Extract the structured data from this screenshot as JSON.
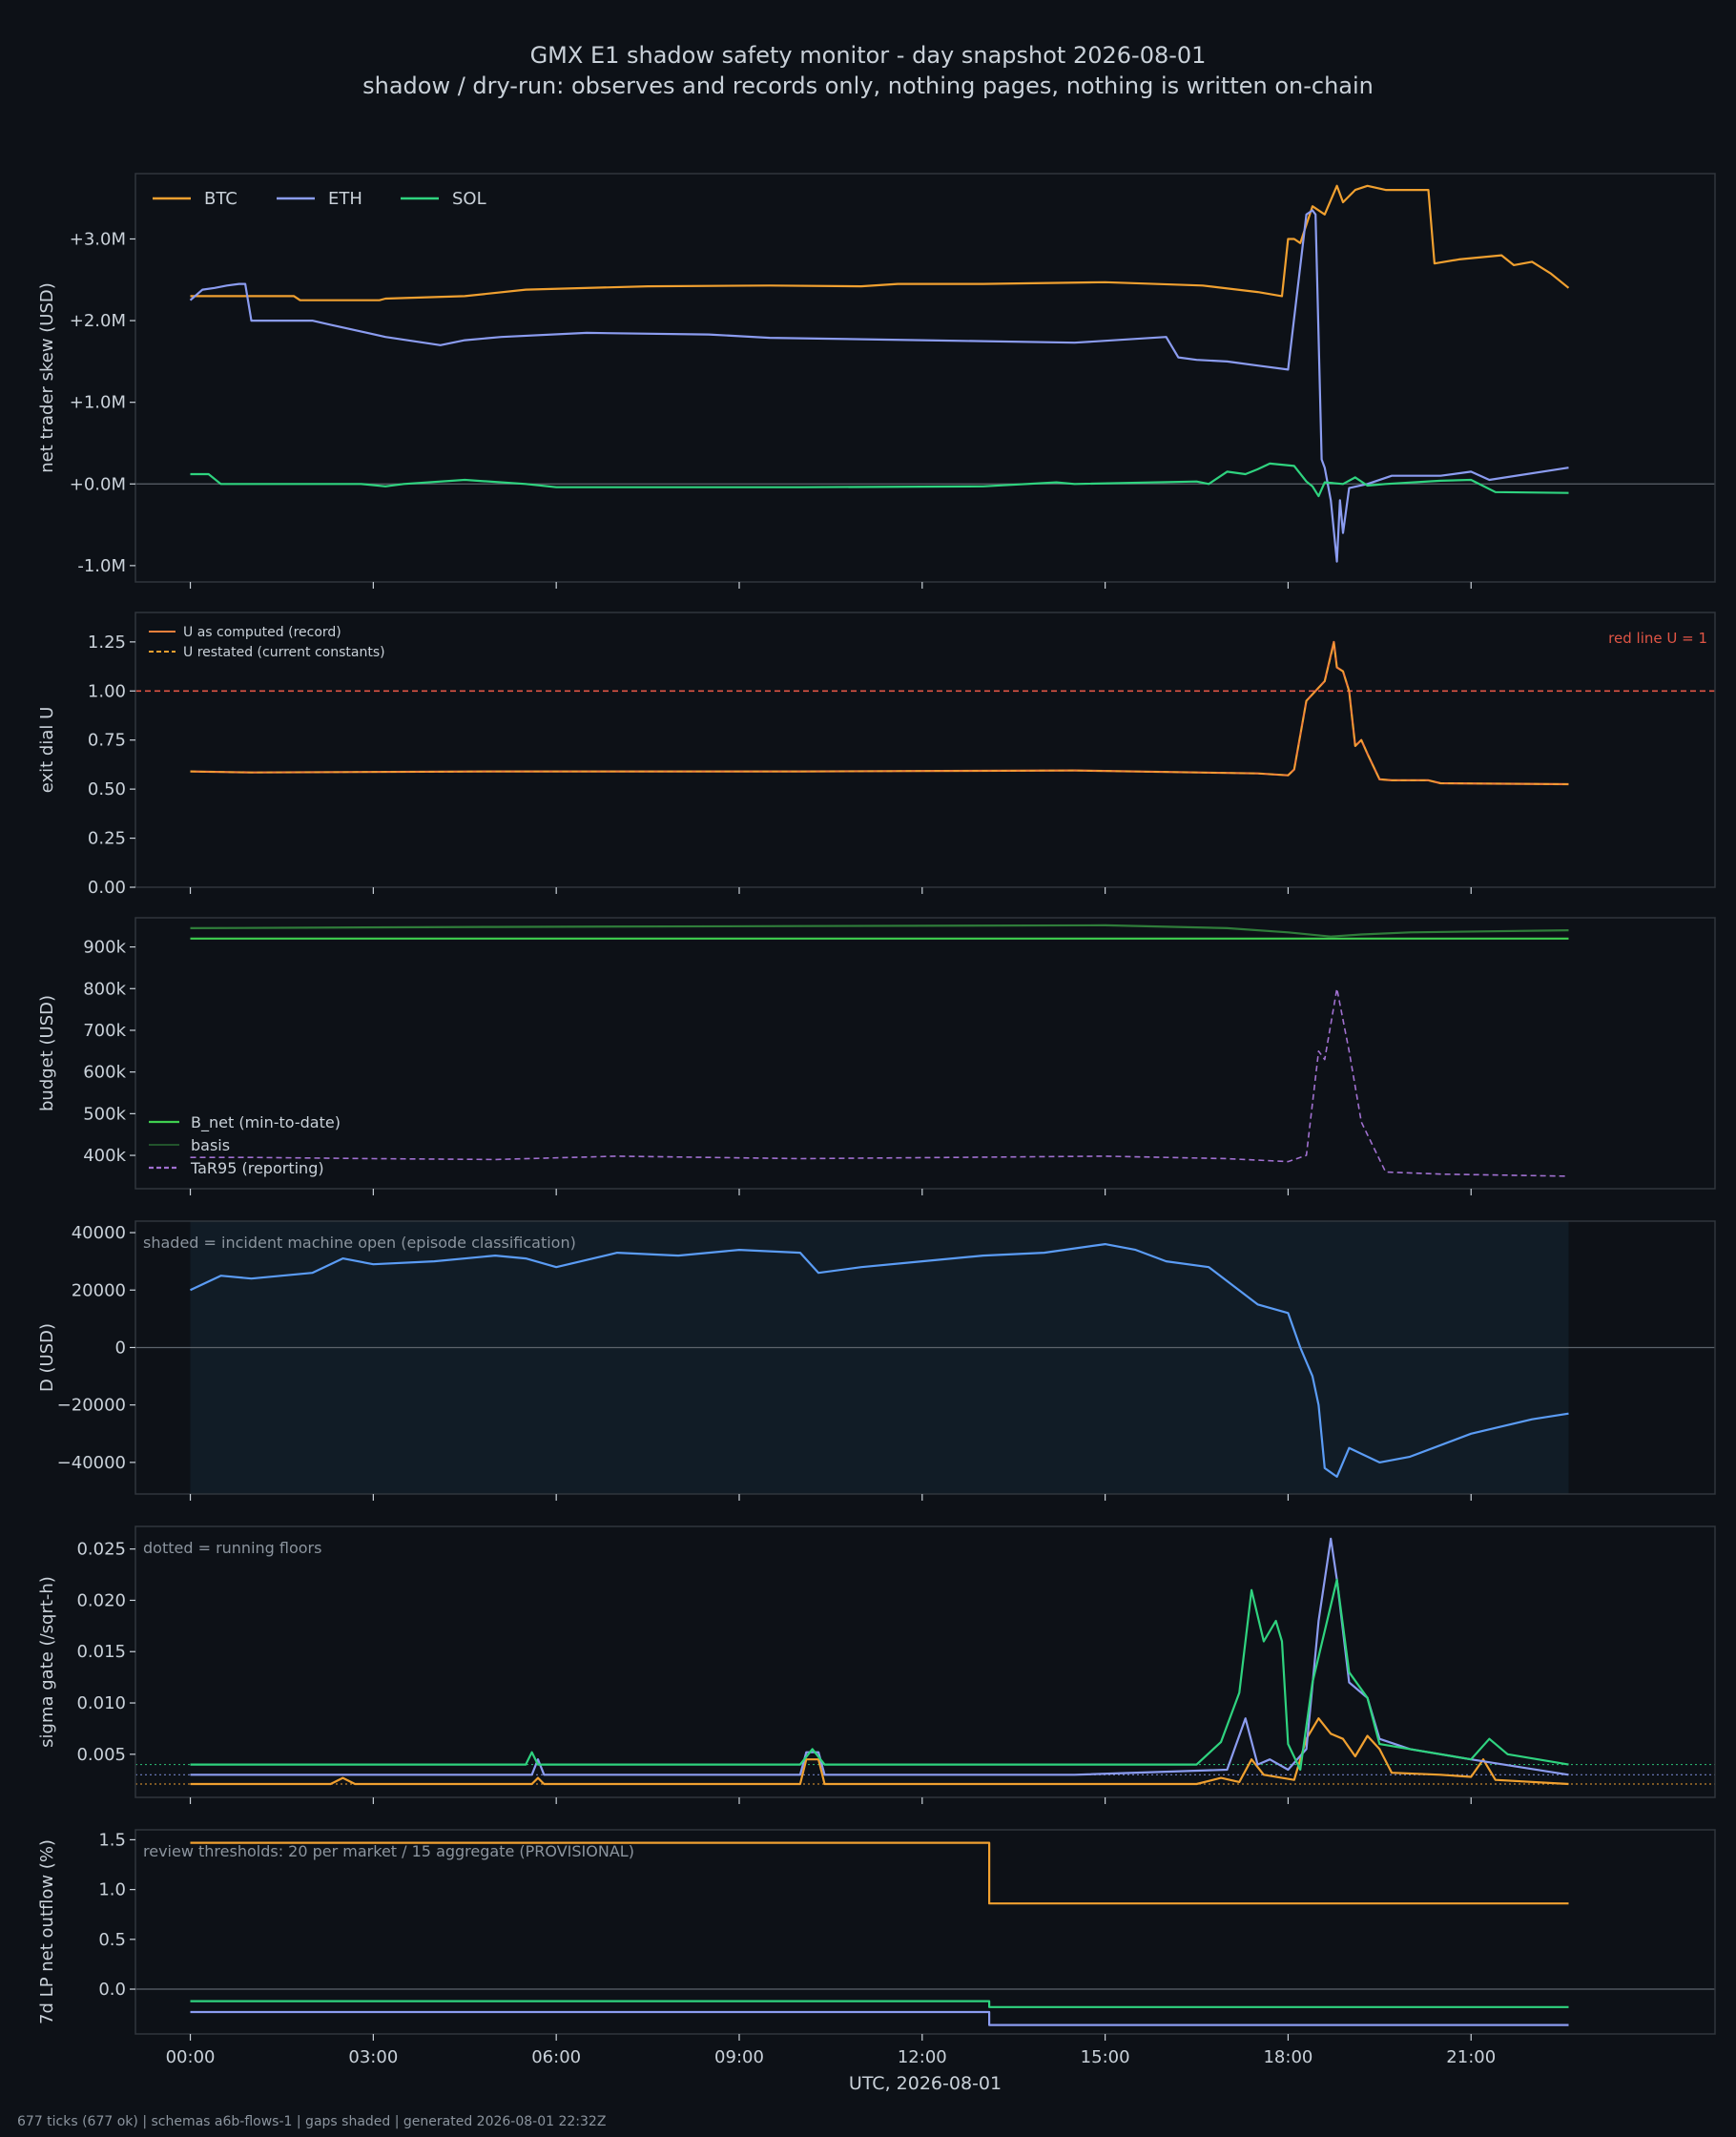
{
  "title": "GMX E1 shadow safety monitor - day snapshot 2026-08-01",
  "subtitle": "shadow / dry-run: observes and records only, nothing pages, nothing is written on-chain",
  "footer": "677 ticks (677 ok) | schemas a6b-flows-1 | gaps shaded | generated 2026-08-01 22:32Z",
  "colors": {
    "background": "#0d1117",
    "axes_border": "#30363d",
    "text": "#c9d1d9",
    "muted_text": "#8b949e",
    "btc": "#f0a030",
    "eth": "#8b9cf0",
    "sol": "#2fd37f",
    "u_record": "#f0803c",
    "red_line": "#e05545",
    "b_net": "#3fcf4f",
    "basis": "#2f7d3a",
    "tar95": "#a070d0",
    "d_line": "#5b9cf5",
    "incident_shade": "#111c26"
  },
  "chart_data": [
    {
      "type": "line",
      "ylabel": "net trader skew (USD)",
      "ylim": [
        -1200000,
        3800000
      ],
      "yticks": [
        -1000000,
        0,
        1000000,
        2000000,
        3000000
      ],
      "yticklabels": [
        "-1.0M",
        "+0.0M",
        "+1.0M",
        "+2.0M",
        "+3.0M"
      ],
      "xlim": [
        -0.9,
        25.0
      ],
      "legend_position": "top-left",
      "zero_line": true,
      "series": [
        {
          "name": "BTC",
          "color": "btc",
          "x": [
            0,
            1.7,
            1.8,
            3.1,
            3.2,
            4.5,
            5.5,
            7.5,
            9.5,
            11,
            11.6,
            13,
            15,
            16.6,
            17.5,
            17.9,
            18.0,
            18.1,
            18.2,
            18.4,
            18.6,
            18.8,
            18.9,
            19.1,
            19.3,
            19.6,
            20.3,
            20.4,
            20.8,
            21.5,
            21.7,
            22.0,
            22.3,
            22.6
          ],
          "values": [
            2300000,
            2300000,
            2250000,
            2250000,
            2270000,
            2300000,
            2380000,
            2420000,
            2430000,
            2420000,
            2450000,
            2450000,
            2470000,
            2430000,
            2350000,
            2300000,
            3000000,
            3000000,
            2950000,
            3400000,
            3300000,
            3650000,
            3450000,
            3600000,
            3650000,
            3600000,
            3600000,
            2700000,
            2750000,
            2800000,
            2680000,
            2720000,
            2580000,
            2400000
          ]
        },
        {
          "name": "ETH",
          "color": "eth",
          "x": [
            0,
            0.2,
            0.4,
            0.6,
            0.8,
            0.9,
            1.0,
            1.1,
            2.0,
            2.3,
            3.2,
            4.1,
            4.5,
            5.1,
            6.5,
            8.5,
            9.5,
            12,
            14.5,
            16.0,
            16.2,
            16.5,
            17.0,
            17.5,
            18.0,
            18.3,
            18.4,
            18.45,
            18.55,
            18.6,
            18.7,
            18.8,
            18.85,
            18.9,
            19.0,
            19.3,
            19.7,
            20.5,
            21.0,
            21.3,
            22.6
          ],
          "values": [
            2250000,
            2380000,
            2400000,
            2430000,
            2450000,
            2450000,
            2000000,
            2000000,
            2000000,
            1950000,
            1800000,
            1700000,
            1760000,
            1800000,
            1850000,
            1830000,
            1790000,
            1760000,
            1730000,
            1800000,
            1550000,
            1520000,
            1500000,
            1450000,
            1400000,
            3300000,
            3350000,
            3300000,
            300000,
            200000,
            -200000,
            -950000,
            -200000,
            -600000,
            -50000,
            0,
            100000,
            100000,
            150000,
            50000,
            200000
          ]
        },
        {
          "name": "SOL",
          "color": "sol",
          "x": [
            0,
            0.3,
            0.5,
            2.8,
            3.2,
            3.5,
            4.5,
            5.5,
            6,
            10,
            13,
            14.2,
            14.5,
            16.5,
            16.7,
            17.0,
            17.3,
            17.5,
            17.7,
            18.1,
            18.3,
            18.4,
            18.5,
            18.6,
            18.9,
            19.1,
            19.3,
            19.6,
            20.5,
            21.0,
            21.4,
            22.6
          ],
          "values": [
            120000,
            120000,
            0,
            0,
            -30000,
            0,
            50000,
            0,
            -40000,
            -40000,
            -30000,
            20000,
            0,
            30000,
            0,
            150000,
            120000,
            180000,
            250000,
            220000,
            30000,
            -30000,
            -150000,
            20000,
            0,
            80000,
            -20000,
            0,
            40000,
            50000,
            -100000,
            -110000
          ]
        }
      ]
    },
    {
      "type": "line",
      "ylabel": "exit dial U",
      "ylim": [
        0,
        1.4
      ],
      "yticks": [
        0,
        0.25,
        0.5,
        0.75,
        1.0,
        1.25
      ],
      "yticklabels": [
        "0.00",
        "0.25",
        "0.50",
        "0.75",
        "1.00",
        "1.25"
      ],
      "xlim": [
        -0.9,
        25.0
      ],
      "legend_position": "top-left",
      "hline": {
        "y": 1.0,
        "color": "red_line",
        "dash": true,
        "label": "red line U = 1"
      },
      "series": [
        {
          "name": "U as computed (record)",
          "color": "u_record",
          "x": [
            0,
            1.0,
            5.0,
            10.0,
            14.5,
            17.5,
            18.0,
            18.1,
            18.3,
            18.45,
            18.6,
            18.75,
            18.8,
            18.9,
            19.0,
            19.1,
            19.2,
            19.3,
            19.5,
            19.7,
            20.3,
            20.5,
            22.6
          ],
          "values": [
            0.59,
            0.585,
            0.59,
            0.59,
            0.595,
            0.58,
            0.57,
            0.6,
            0.95,
            1.0,
            1.05,
            1.25,
            1.12,
            1.1,
            1.0,
            0.72,
            0.75,
            0.68,
            0.55,
            0.545,
            0.545,
            0.53,
            0.525
          ]
        },
        {
          "name": "U restated (current constants)",
          "color": "btc",
          "dash": true,
          "x": [
            0,
            1.0,
            5.0,
            10.0,
            14.5,
            17.5,
            18.0,
            18.1,
            18.3,
            18.45,
            18.6,
            18.75,
            18.8,
            18.9,
            19.0,
            19.1,
            19.2,
            19.3,
            19.5,
            19.7,
            20.3,
            20.5,
            22.6
          ],
          "values": [
            0.59,
            0.585,
            0.59,
            0.59,
            0.595,
            0.58,
            0.57,
            0.6,
            0.95,
            1.0,
            1.05,
            1.24,
            1.12,
            1.1,
            1.0,
            0.72,
            0.75,
            0.68,
            0.55,
            0.545,
            0.545,
            0.53,
            0.525
          ]
        }
      ]
    },
    {
      "type": "line",
      "ylabel": "budget (USD)",
      "ylim": [
        320000,
        970000
      ],
      "yticks": [
        400000,
        500000,
        600000,
        700000,
        800000,
        900000
      ],
      "yticklabels": [
        "400k",
        "500k",
        "600k",
        "700k",
        "800k",
        "900k"
      ],
      "xlim": [
        -0.9,
        25.0
      ],
      "legend_position": "lower-left",
      "series": [
        {
          "name": "B_net (min-to-date)",
          "color": "b_net",
          "x": [
            0,
            22.6
          ],
          "values": [
            920000,
            920000
          ]
        },
        {
          "name": "basis",
          "color": "basis",
          "x": [
            0,
            5,
            10,
            15,
            17,
            18.0,
            18.7,
            19.2,
            20,
            22.6
          ],
          "values": [
            945000,
            948000,
            950000,
            952000,
            945000,
            935000,
            925000,
            930000,
            935000,
            940000
          ]
        },
        {
          "name": "TaR95 (reporting)",
          "color": "tar95",
          "dash": true,
          "x": [
            0,
            1,
            3,
            5,
            7,
            10,
            15,
            17,
            18.0,
            18.3,
            18.5,
            18.6,
            18.8,
            19.0,
            19.2,
            19.4,
            19.6,
            20.5,
            22.6
          ],
          "values": [
            395000,
            395000,
            392000,
            390000,
            398000,
            392000,
            398000,
            392000,
            385000,
            400000,
            650000,
            630000,
            800000,
            650000,
            480000,
            420000,
            360000,
            355000,
            350000
          ]
        }
      ]
    },
    {
      "type": "line",
      "ylabel": "D (USD)",
      "ylim": [
        -51000,
        44000
      ],
      "yticks": [
        -40000,
        -20000,
        0,
        20000,
        40000
      ],
      "yticklabels": [
        "−40000",
        "−20000",
        "0",
        "20000",
        "40000"
      ],
      "xlim": [
        -0.9,
        25.0
      ],
      "zero_line": true,
      "annotation": "shaded = incident machine open (episode classification)",
      "shaded_span": [
        0,
        22.6
      ],
      "series": [
        {
          "name": "",
          "color": "d_line",
          "x": [
            0,
            0.5,
            1,
            2,
            2.5,
            3,
            4,
            5,
            5.5,
            6,
            7,
            8,
            9,
            10,
            10.3,
            11,
            12,
            13,
            14,
            15,
            15.5,
            16,
            16.7,
            17.5,
            18,
            18.2,
            18.4,
            18.5,
            18.6,
            18.8,
            19.0,
            19.5,
            20,
            21,
            22,
            22.6
          ],
          "values": [
            20000,
            25000,
            24000,
            26000,
            31000,
            29000,
            30000,
            32000,
            31000,
            28000,
            33000,
            32000,
            34000,
            33000,
            26000,
            28000,
            30000,
            32000,
            33000,
            36000,
            34000,
            30000,
            28000,
            15000,
            12000,
            0,
            -10000,
            -20000,
            -42000,
            -45000,
            -35000,
            -40000,
            -38000,
            -30000,
            -25000,
            -23000
          ]
        }
      ]
    },
    {
      "type": "line",
      "ylabel": "sigma gate (/sqrt-h)",
      "ylim": [
        0.0008,
        0.0272
      ],
      "yticks": [
        0.005,
        0.01,
        0.015,
        0.02,
        0.025
      ],
      "yticklabels": [
        "0.005",
        "0.010",
        "0.015",
        "0.020",
        "0.025"
      ],
      "xlim": [
        -0.9,
        25.0
      ],
      "annotation": "dotted = running floors",
      "floors": [
        {
          "value": 0.004,
          "color": "sol"
        },
        {
          "value": 0.003,
          "color": "eth"
        },
        {
          "value": 0.0021,
          "color": "btc"
        }
      ],
      "series": [
        {
          "name": "BTC",
          "color": "btc",
          "x": [
            0,
            2.3,
            2.5,
            2.7,
            5.6,
            5.7,
            5.8,
            10.0,
            10.1,
            10.3,
            10.4,
            16.5,
            16.9,
            17.2,
            17.4,
            17.6,
            17.9,
            18.1,
            18.3,
            18.5,
            18.7,
            18.9,
            19.1,
            19.3,
            19.5,
            19.7,
            20.5,
            21.0,
            21.2,
            21.4,
            22.6
          ],
          "values": [
            0.0021,
            0.0021,
            0.0027,
            0.0021,
            0.0021,
            0.0027,
            0.0021,
            0.0021,
            0.0045,
            0.0045,
            0.0021,
            0.0021,
            0.0027,
            0.0023,
            0.0045,
            0.003,
            0.0027,
            0.0025,
            0.0065,
            0.0085,
            0.007,
            0.0065,
            0.0048,
            0.0068,
            0.0055,
            0.0032,
            0.003,
            0.0028,
            0.0045,
            0.0025,
            0.0021
          ]
        },
        {
          "name": "ETH",
          "color": "eth",
          "x": [
            0,
            5.6,
            5.7,
            5.8,
            10.0,
            10.1,
            10.3,
            10.4,
            14.5,
            17.0,
            17.3,
            17.5,
            17.7,
            18.0,
            18.3,
            18.5,
            18.7,
            18.8,
            19.0,
            19.3,
            19.5,
            20.0,
            20.5,
            21.0,
            22.6
          ],
          "values": [
            0.003,
            0.003,
            0.0045,
            0.003,
            0.003,
            0.0052,
            0.0052,
            0.003,
            0.003,
            0.0035,
            0.0085,
            0.004,
            0.0045,
            0.0035,
            0.0055,
            0.018,
            0.026,
            0.022,
            0.012,
            0.0105,
            0.0065,
            0.0055,
            0.005,
            0.0045,
            0.003
          ]
        },
        {
          "name": "SOL",
          "color": "sol",
          "x": [
            0,
            5.5,
            5.6,
            5.7,
            10.0,
            10.2,
            10.4,
            16.5,
            16.9,
            17.2,
            17.4,
            17.6,
            17.8,
            17.9,
            18.0,
            18.2,
            18.4,
            18.6,
            18.8,
            19.0,
            19.3,
            19.5,
            20.0,
            21.0,
            21.3,
            21.6,
            22.6
          ],
          "values": [
            0.004,
            0.004,
            0.0052,
            0.004,
            0.004,
            0.0055,
            0.004,
            0.004,
            0.0062,
            0.011,
            0.021,
            0.016,
            0.018,
            0.016,
            0.006,
            0.0035,
            0.012,
            0.017,
            0.022,
            0.013,
            0.0105,
            0.006,
            0.0055,
            0.0045,
            0.0065,
            0.005,
            0.004
          ]
        }
      ]
    },
    {
      "type": "line",
      "ylabel": "7d LP net outflow (%)",
      "ylim": [
        -0.45,
        1.6
      ],
      "yticks": [
        0,
        0.5,
        1.0,
        1.5
      ],
      "yticklabels": [
        "0.0",
        "0.5",
        "1.0",
        "1.5"
      ],
      "xlim": [
        -0.9,
        25.0
      ],
      "zero_line": true,
      "annotation": "review thresholds: 20 per market / 15 aggregate (PROVISIONAL)",
      "xticks": [
        0,
        3,
        6,
        9,
        12,
        15,
        18,
        21
      ],
      "xticklabels": [
        "00:00",
        "03:00",
        "06:00",
        "09:00",
        "12:00",
        "15:00",
        "18:00",
        "21:00"
      ],
      "xlabel": "UTC, 2026-08-01",
      "series": [
        {
          "name": "BTC",
          "color": "btc",
          "x": [
            0,
            13.1,
            13.1,
            22.6
          ],
          "values": [
            1.47,
            1.47,
            0.86,
            0.86
          ]
        },
        {
          "name": "SOL",
          "color": "sol",
          "x": [
            0,
            13.1,
            13.1,
            22.6
          ],
          "values": [
            -0.12,
            -0.12,
            -0.18,
            -0.18
          ]
        },
        {
          "name": "ETH",
          "color": "eth",
          "x": [
            0,
            13.1,
            13.1,
            22.6
          ],
          "values": [
            -0.23,
            -0.23,
            -0.36,
            -0.36
          ]
        }
      ]
    }
  ]
}
